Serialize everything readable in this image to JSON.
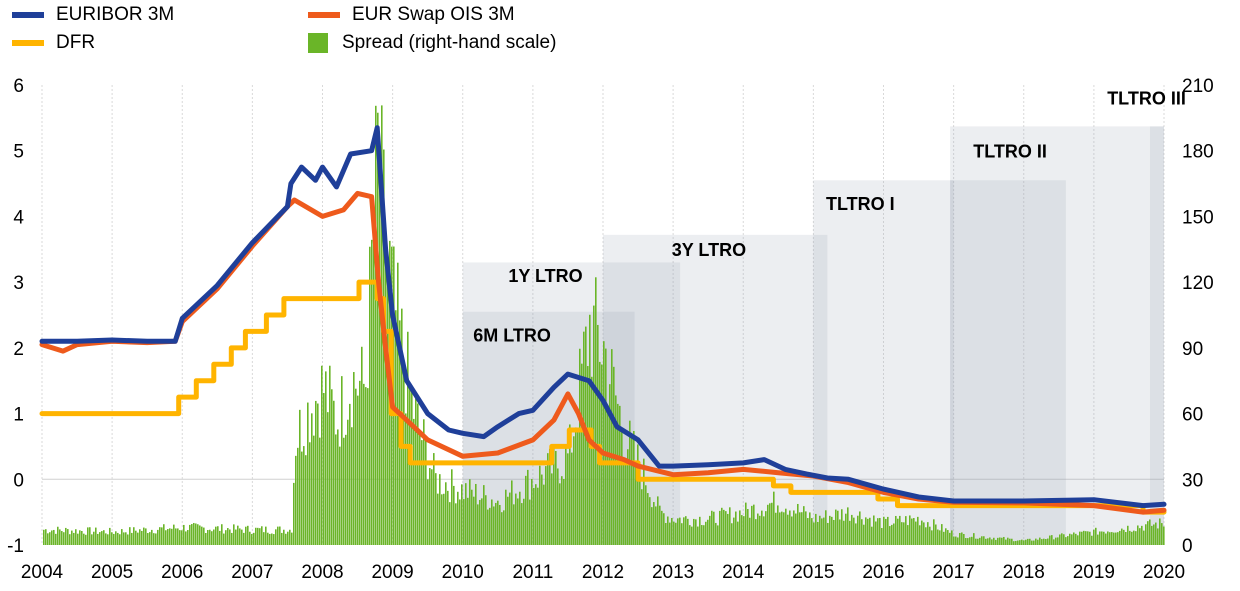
{
  "legend": {
    "items": [
      {
        "label": "EURIBOR 3M",
        "color": "#1f3f99",
        "kind": "line"
      },
      {
        "label": "EUR Swap OIS 3M",
        "color": "#ee5a1c",
        "kind": "line"
      },
      {
        "label": "DFR",
        "color": "#ffb400",
        "kind": "line"
      },
      {
        "label": "Spread (right-hand scale)",
        "color": "#6ab528",
        "kind": "bar"
      }
    ]
  },
  "chart_data": {
    "type": "line",
    "x_ticks": [
      "2004",
      "2005",
      "2006",
      "2007",
      "2008",
      "2009",
      "2010",
      "2011",
      "2012",
      "2013",
      "2014",
      "2015",
      "2016",
      "2017",
      "2018",
      "2019",
      "2020"
    ],
    "x_range": [
      2004,
      2020
    ],
    "y_left": {
      "range": [
        -1,
        6
      ],
      "ticks": [
        "-1",
        "0",
        "1",
        "2",
        "3",
        "4",
        "5",
        "6"
      ]
    },
    "y_right": {
      "range": [
        0,
        210
      ],
      "ticks": [
        "0",
        "30",
        "60",
        "90",
        "120",
        "150",
        "180",
        "210"
      ]
    },
    "grid": "vertical",
    "series": [
      {
        "name": "EURIBOR 3M",
        "color": "#1f3f99",
        "axis": "left",
        "x": [
          2004.0,
          2004.5,
          2005.0,
          2005.5,
          2005.9,
          2006.0,
          2006.5,
          2007.0,
          2007.5,
          2007.55,
          2007.7,
          2007.9,
          2008.0,
          2008.2,
          2008.4,
          2008.7,
          2008.78,
          2008.9,
          2009.0,
          2009.2,
          2009.5,
          2009.8,
          2010.0,
          2010.3,
          2010.5,
          2010.8,
          2011.0,
          2011.3,
          2011.5,
          2011.8,
          2012.0,
          2012.2,
          2012.5,
          2012.8,
          2013.0,
          2013.5,
          2014.0,
          2014.3,
          2014.6,
          2014.9,
          2015.2,
          2015.5,
          2016.0,
          2016.5,
          2017.0,
          2018.0,
          2019.0,
          2019.7,
          2020.0
        ],
        "y": [
          2.1,
          2.1,
          2.12,
          2.1,
          2.1,
          2.45,
          2.95,
          3.6,
          4.15,
          4.5,
          4.75,
          4.55,
          4.75,
          4.45,
          4.95,
          5.0,
          5.35,
          3.5,
          2.5,
          1.5,
          1.0,
          0.75,
          0.7,
          0.65,
          0.8,
          1.0,
          1.05,
          1.4,
          1.6,
          1.5,
          1.2,
          0.8,
          0.6,
          0.2,
          0.2,
          0.22,
          0.25,
          0.3,
          0.15,
          0.08,
          0.02,
          0.0,
          -0.15,
          -0.27,
          -0.33,
          -0.33,
          -0.31,
          -0.4,
          -0.38
        ]
      },
      {
        "name": "EUR Swap OIS 3M",
        "color": "#ee5a1c",
        "axis": "left",
        "x": [
          2004.0,
          2004.3,
          2004.5,
          2005.0,
          2005.5,
          2005.9,
          2006.0,
          2006.5,
          2007.0,
          2007.5,
          2007.6,
          2008.0,
          2008.3,
          2008.5,
          2008.7,
          2008.8,
          2008.9,
          2009.0,
          2009.2,
          2009.5,
          2010.0,
          2010.5,
          2011.0,
          2011.3,
          2011.5,
          2011.65,
          2011.8,
          2012.0,
          2012.3,
          2012.5,
          2013.0,
          2013.5,
          2014.0,
          2014.5,
          2015.0,
          2015.5,
          2016.0,
          2016.5,
          2017.0,
          2018.0,
          2019.0,
          2019.7,
          2020.0
        ],
        "y": [
          2.05,
          1.95,
          2.05,
          2.1,
          2.08,
          2.1,
          2.4,
          2.9,
          3.55,
          4.15,
          4.25,
          4.0,
          4.1,
          4.35,
          4.3,
          3.0,
          2.0,
          1.1,
          0.9,
          0.6,
          0.35,
          0.4,
          0.6,
          0.9,
          1.3,
          1.0,
          0.6,
          0.4,
          0.3,
          0.2,
          0.07,
          0.1,
          0.15,
          0.1,
          0.05,
          -0.05,
          -0.2,
          -0.3,
          -0.35,
          -0.36,
          -0.4,
          -0.5,
          -0.47
        ]
      },
      {
        "name": "DFR",
        "color": "#ffb400",
        "axis": "left",
        "x": [
          2004.0,
          2005.95,
          2005.95,
          2006.2,
          2006.2,
          2006.45,
          2006.45,
          2006.7,
          2006.7,
          2006.9,
          2006.9,
          2007.2,
          2007.2,
          2007.45,
          2007.45,
          2008.52,
          2008.52,
          2008.78,
          2008.78,
          2008.87,
          2008.87,
          2008.98,
          2008.98,
          2009.12,
          2009.12,
          2009.25,
          2009.25,
          2009.35,
          2009.35,
          2011.27,
          2011.27,
          2011.52,
          2011.52,
          2011.83,
          2011.83,
          2011.95,
          2011.95,
          2012.5,
          2012.5,
          2013.83,
          2013.83,
          2014.43,
          2014.43,
          2014.68,
          2014.68,
          2015.92,
          2015.92,
          2016.2,
          2016.2,
          2019.7,
          2019.7,
          2020.0
        ],
        "y": [
          1.0,
          1.0,
          1.25,
          1.25,
          1.5,
          1.5,
          1.75,
          1.75,
          2.0,
          2.0,
          2.25,
          2.25,
          2.5,
          2.5,
          2.75,
          2.75,
          3.0,
          3.0,
          2.75,
          2.75,
          2.25,
          2.25,
          1.0,
          1.0,
          0.5,
          0.5,
          0.25,
          0.25,
          0.25,
          0.25,
          0.5,
          0.5,
          0.75,
          0.75,
          0.5,
          0.5,
          0.25,
          0.25,
          0.0,
          0.0,
          0.0,
          0.0,
          -0.1,
          -0.1,
          -0.2,
          -0.2,
          -0.3,
          -0.3,
          -0.4,
          -0.4,
          -0.5,
          -0.5
        ]
      },
      {
        "name": "Spread (right-hand scale)",
        "color": "#6ab528",
        "axis": "right",
        "type": "bar",
        "x": [
          2004.0,
          2005.0,
          2006.0,
          2007.0,
          2007.55,
          2007.6,
          2007.8,
          2008.0,
          2008.2,
          2008.4,
          2008.6,
          2008.78,
          2008.85,
          2009.0,
          2009.3,
          2009.6,
          2010.0,
          2010.5,
          2011.0,
          2011.5,
          2011.8,
          2012.0,
          2012.3,
          2012.6,
          2012.8,
          2013.0,
          2013.5,
          2014.0,
          2014.5,
          2015.0,
          2015.5,
          2016.0,
          2016.5,
          2017.0,
          2018.0,
          2019.0,
          2019.5,
          2020.0
        ],
        "y": [
          7,
          6,
          8,
          7,
          7,
          48,
          62,
          72,
          57,
          75,
          72,
          180,
          150,
          110,
          60,
          30,
          25,
          20,
          30,
          40,
          100,
          90,
          50,
          30,
          15,
          12,
          12,
          15,
          20,
          12,
          15,
          10,
          12,
          5,
          2,
          6,
          8,
          10
        ]
      }
    ],
    "annotations": [
      {
        "label": "6M LTRO",
        "x_start": 2010.0,
        "x_end": 2012.45,
        "y_top": 2.55
      },
      {
        "label": "1Y LTRO",
        "x_start": 2010.0,
        "x_end": 2013.1,
        "y_top": 3.3
      },
      {
        "label": "3Y LTRO",
        "x_start": 2012.0,
        "x_end": 2015.2,
        "y_top": 3.72
      },
      {
        "label": "TLTRO I",
        "x_start": 2015.0,
        "x_end": 2017.0,
        "y_top": 4.55
      },
      {
        "label": "TLTRO II",
        "x_start": 2016.95,
        "x_end": 2018.6,
        "y_top": 4.55
      },
      {
        "label": "TLTRO II",
        "x_start": 2016.95,
        "x_end": 2020.0,
        "y_top": 5.37
      },
      {
        "label": "TLTRO III",
        "x_start": 2019.8,
        "x_end": 2020.0,
        "y_top": 5.37
      }
    ],
    "annotation_labels": [
      "6M LTRO",
      "1Y LTRO",
      "3Y LTRO",
      "TLTRO I",
      "TLTRO II",
      "TLTRO III"
    ]
  }
}
